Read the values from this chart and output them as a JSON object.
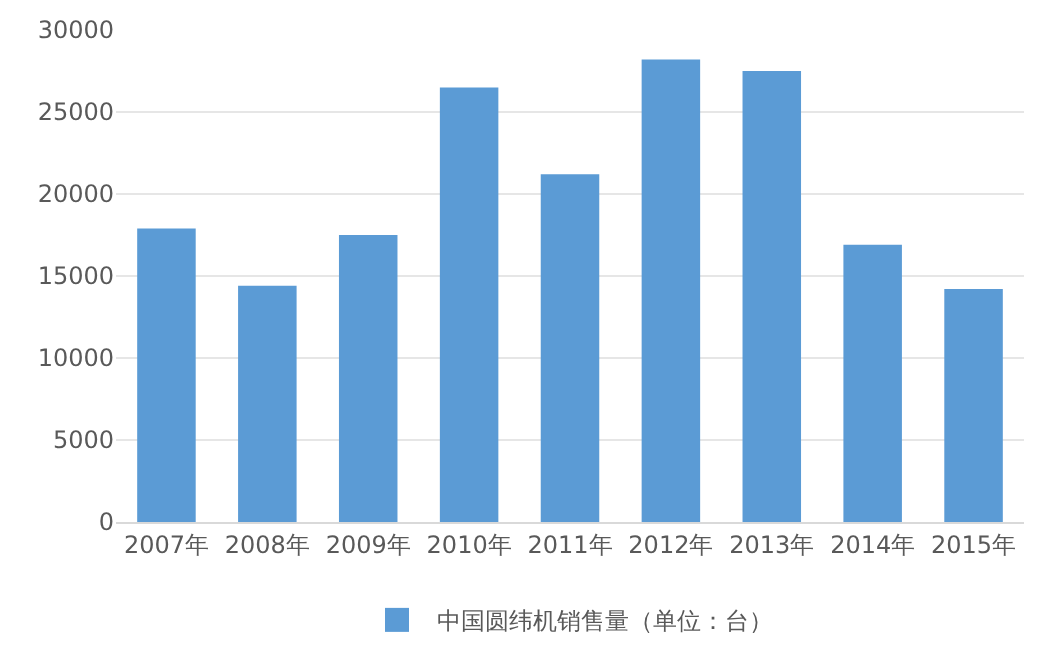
{
  "chart_data": {
    "type": "bar",
    "categories": [
      "2007年",
      "2008年",
      "2009年",
      "2010年",
      "2011年",
      "2012年",
      "2013年",
      "2014年",
      "2015年"
    ],
    "series": [
      {
        "name": "中国圆纬机销售量（单位：台）",
        "color": "#5b9bd5",
        "values": [
          17900,
          14400,
          17500,
          26500,
          21200,
          28200,
          27500,
          16900,
          14200
        ]
      }
    ],
    "ylim": [
      0,
      30000
    ],
    "yticks": [
      0,
      5000,
      10000,
      15000,
      20000,
      25000,
      30000
    ],
    "grid": "y",
    "legend": "bottom"
  }
}
